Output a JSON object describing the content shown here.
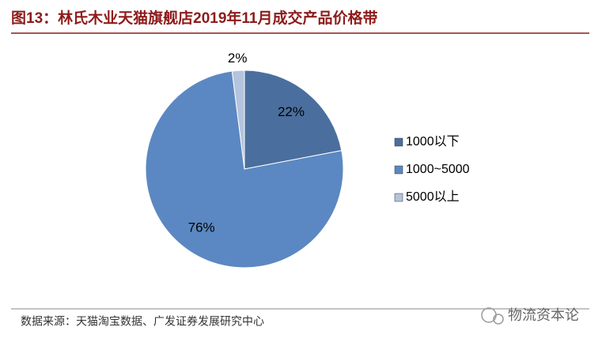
{
  "chart_data": {
    "type": "pie",
    "title": "图13：林氏木业天猫旗舰店2019年11月成交产品价格带",
    "categories": [
      "1000以下",
      "1000~5000",
      "5000以上"
    ],
    "values": [
      22,
      76,
      2
    ],
    "value_labels": [
      "22%",
      "76%",
      "2%"
    ],
    "colors": [
      "#4a6f9e",
      "#5b88c2",
      "#b4c4de"
    ],
    "legend": "right"
  },
  "source": "数据来源：天猫淘宝数据、广发证券发展研究中心",
  "watermark": "物流资本论"
}
